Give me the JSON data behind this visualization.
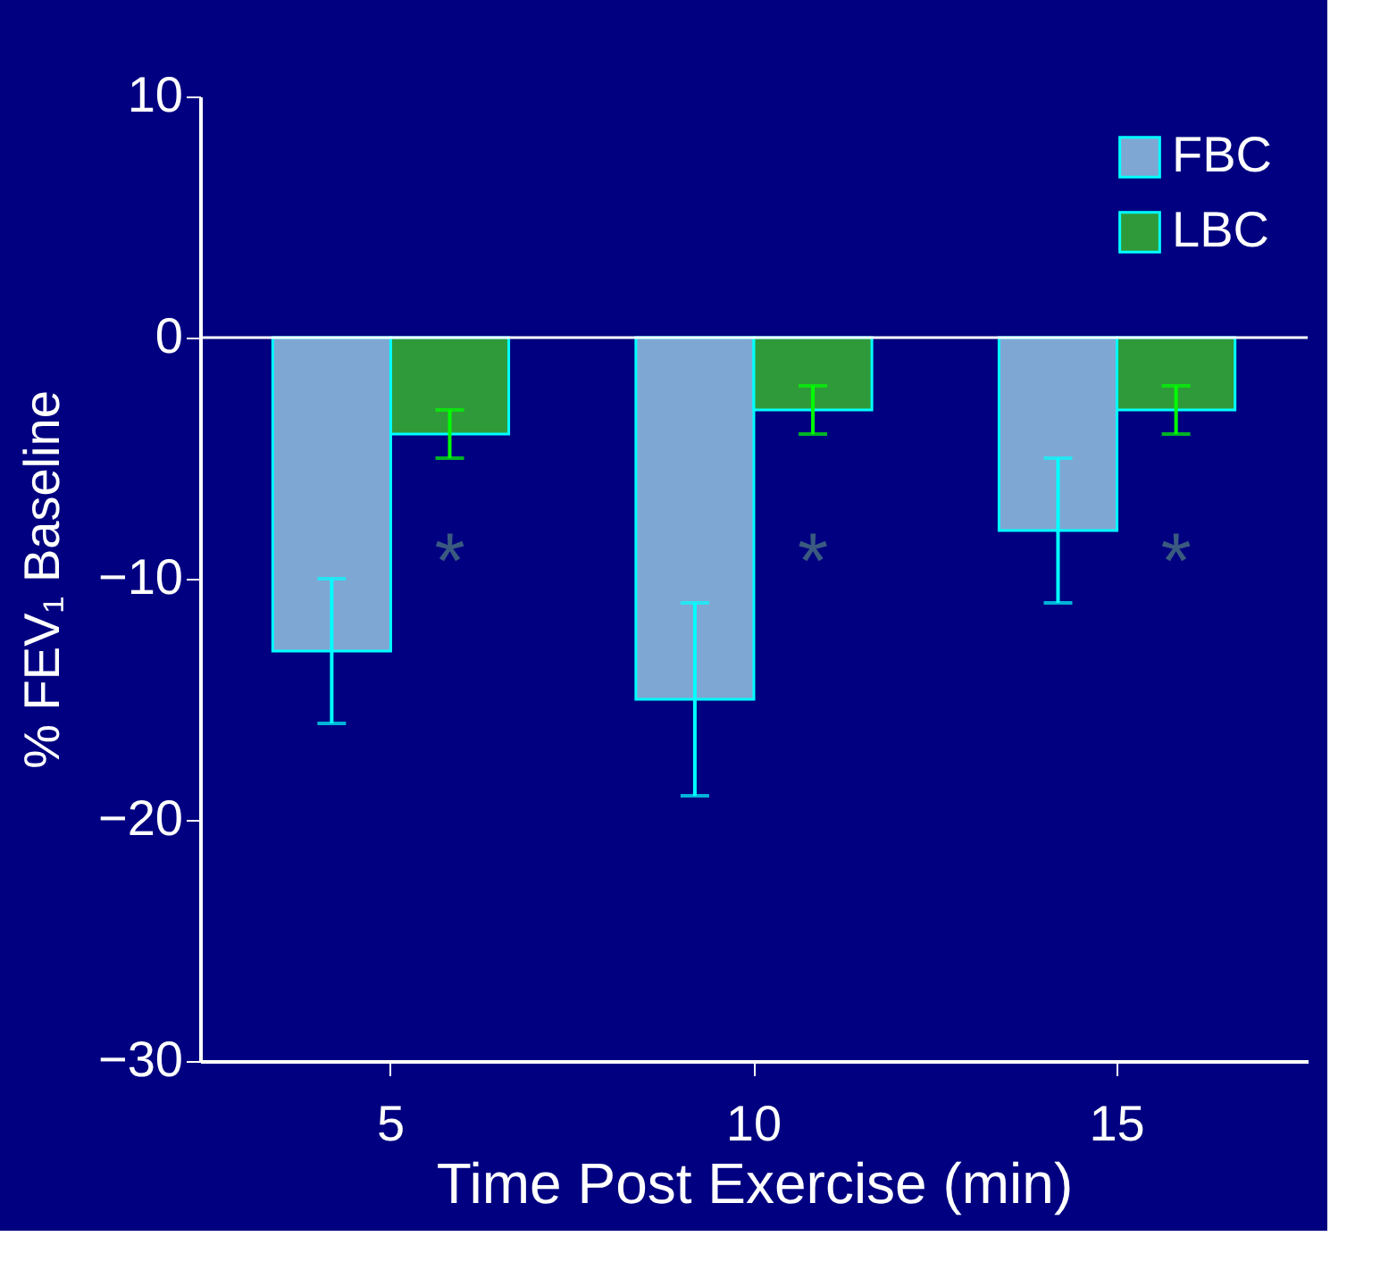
{
  "chart_data": {
    "type": "bar",
    "xlabel": "Time Post Exercise (min)",
    "ylabel": "% FEV₁ Baseline",
    "categories": [
      "5",
      "10",
      "15"
    ],
    "series": [
      {
        "name": "FBC",
        "color": "#7fa7d4",
        "values": [
          -13,
          -15,
          -8
        ],
        "errors": [
          3,
          4,
          3
        ]
      },
      {
        "name": "LBC",
        "color": "#2f9a3a",
        "values": [
          -4,
          -3,
          -3
        ],
        "errors": [
          1,
          1,
          1
        ]
      }
    ],
    "ylim": [
      -30,
      10
    ],
    "yticks": [
      -30,
      -20,
      -10,
      0,
      10
    ],
    "grid": false,
    "legend": "top right",
    "ref_lines": [
      {
        "axis": "y",
        "value": 0,
        "color": "#ffffff"
      }
    ],
    "annotations": [
      "*",
      "*",
      "*"
    ]
  }
}
